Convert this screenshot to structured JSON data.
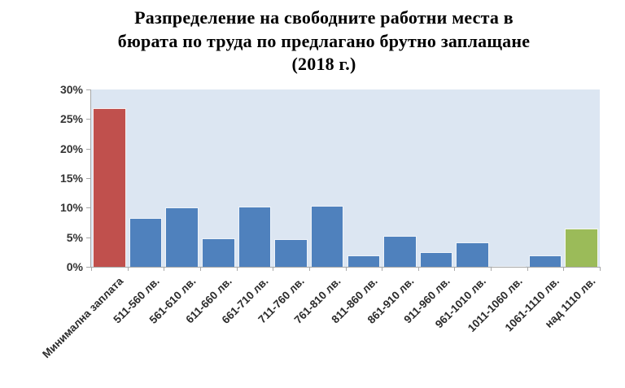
{
  "chart_data": {
    "type": "bar",
    "title": "Разпределение на свободните работни места в\nбюрата по труда по предлагано брутно заплащане\n(2018 г.)",
    "categories": [
      "Минимална заплата",
      "511-560 лв.",
      "561-610 лв.",
      "611-660 лв.",
      "661-710 лв.",
      "711-760 лв.",
      "761-810 лв.",
      "811-860 лв.",
      "861-910 лв.",
      "911-960 лв.",
      "961-1010 лв.",
      "1011-1060 лв.",
      "1061-1110 лв.",
      "над 1110 лв."
    ],
    "values": [
      26.9,
      8.3,
      10.1,
      4.8,
      10.2,
      4.7,
      10.3,
      1.9,
      5.3,
      2.5,
      4.1,
      0.2,
      1.9,
      6.5
    ],
    "unit": "%",
    "bar_colors": [
      "#C0504D",
      "#4F81BD",
      "#4F81BD",
      "#4F81BD",
      "#4F81BD",
      "#4F81BD",
      "#4F81BD",
      "#4F81BD",
      "#4F81BD",
      "#4F81BD",
      "#4F81BD",
      "#4F81BD",
      "#4F81BD",
      "#9BBB59"
    ],
    "xlabel": "",
    "ylabel": "",
    "ylim": [
      0,
      30
    ],
    "ytick_labels": [
      "0%",
      "5%",
      "10%",
      "15%",
      "20%",
      "25%",
      "30%"
    ],
    "grid": false,
    "legend": "none",
    "style": {
      "plot_bg": "#DCE6F2",
      "axis_color": "#A8A8A8",
      "bar_outline": "#FFFFFF",
      "accent_red": "#C0504D",
      "accent_blue": "#4F81BD",
      "accent_green": "#9BBB59",
      "text_color": "#2B2B2B",
      "title_color": "#000000"
    }
  }
}
